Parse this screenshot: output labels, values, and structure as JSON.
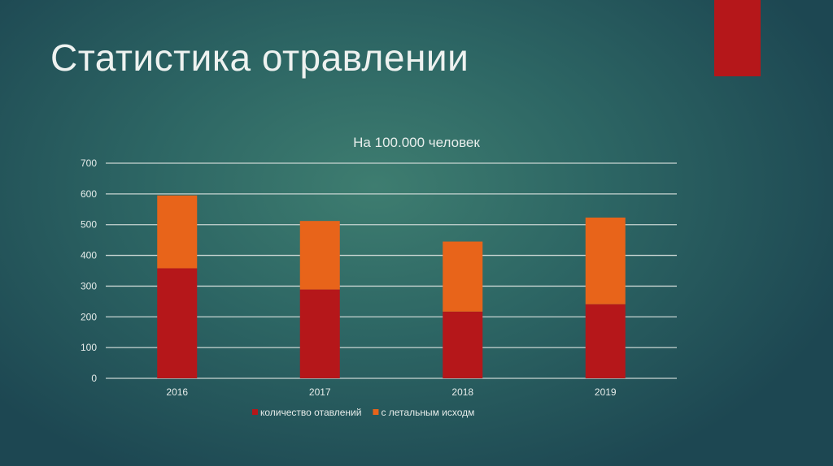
{
  "slide": {
    "title": "Статистика отравлении",
    "accent_color": "#b5171a"
  },
  "chart_data": {
    "type": "bar",
    "stacked": true,
    "title": "На  100.000 человек",
    "categories": [
      "2016",
      "2017",
      "2018",
      "2019"
    ],
    "series": [
      {
        "name": "количество отавлений",
        "color": "#b5171a",
        "values": [
          358,
          289,
          217,
          241
        ]
      },
      {
        "name": "с летальным исходм",
        "color": "#e8641a",
        "values": [
          237,
          223,
          228,
          282
        ]
      }
    ],
    "ylim": [
      0,
      700
    ],
    "yticks": [
      0,
      100,
      200,
      300,
      400,
      500,
      600,
      700
    ],
    "grid": true,
    "legend": "bottom",
    "xlabel": "",
    "ylabel": ""
  }
}
